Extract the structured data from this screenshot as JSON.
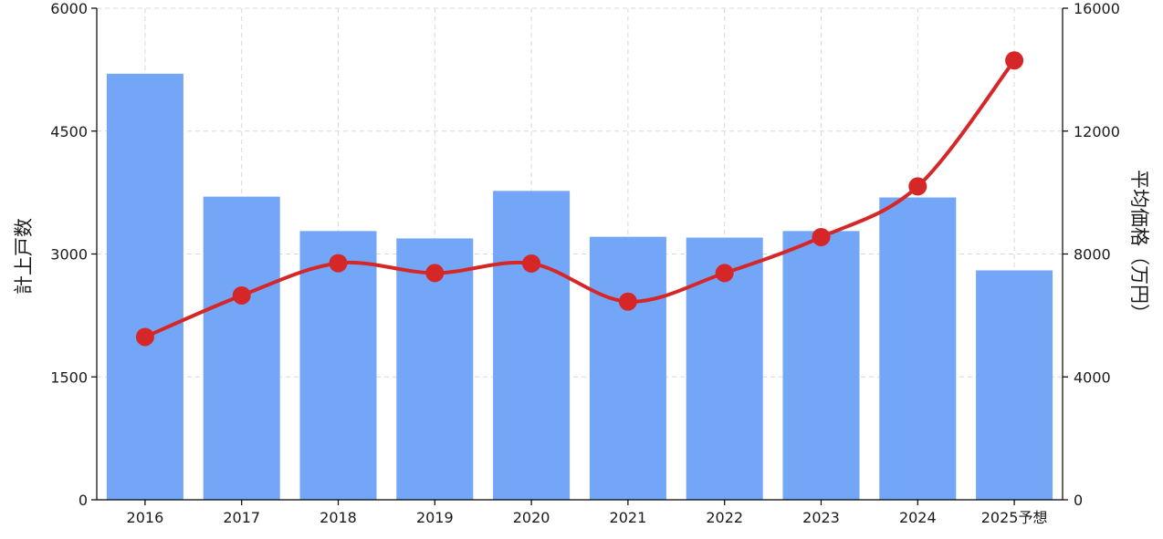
{
  "chart_data": {
    "type": "bar+line",
    "categories": [
      "2016",
      "2017",
      "2018",
      "2019",
      "2020",
      "2021",
      "2022",
      "2023",
      "2024",
      "2025予想"
    ],
    "series": [
      {
        "axis": "left",
        "type": "bar",
        "color": "#74a6f7",
        "values": [
          5200,
          3700,
          3280,
          3190,
          3770,
          3210,
          3200,
          3280,
          3690,
          2800
        ]
      },
      {
        "axis": "right",
        "type": "line",
        "color": "#d62728",
        "values": [
          5300,
          6650,
          7700,
          7380,
          7690,
          6450,
          7380,
          8550,
          10200,
          14300
        ]
      }
    ],
    "ylabel_left": "計上戸数",
    "ylabel_right": "平均価格（万円）",
    "ylim_left": [
      0,
      6000
    ],
    "ylim_right": [
      0,
      16000
    ],
    "yticks_left": [
      0,
      1500,
      3000,
      4500,
      6000
    ],
    "yticks_right": [
      0,
      4000,
      8000,
      12000,
      16000
    ],
    "grid": true
  }
}
